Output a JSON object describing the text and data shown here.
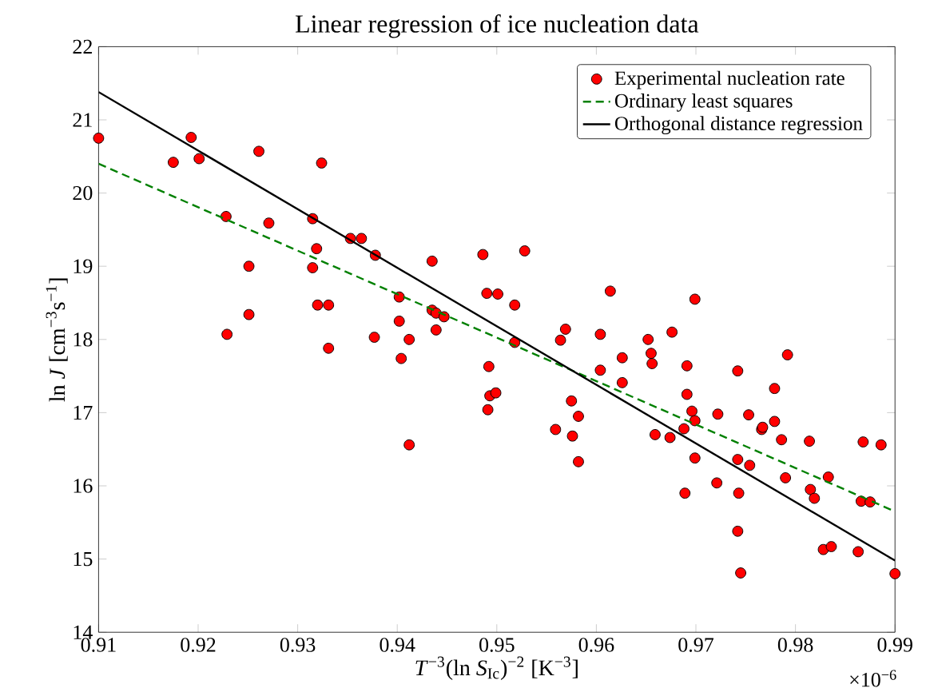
{
  "chart_data": {
    "type": "scatter",
    "title": "Linear regression of ice nucleation data",
    "xlabel": "*T*$^{−3}$(ln *S*$_{Ic}$)$^{−2}$ [K$^{−3}$]",
    "ylabel": "ln *J* [cm$^{−3}$s$^{−1}$]",
    "annotations": [
      "×10$^{−6}$"
    ],
    "xlim": [
      0.91,
      0.99
    ],
    "ylim": [
      14,
      22
    ],
    "xticks": [
      0.91,
      0.92,
      0.93,
      0.94,
      0.95,
      0.96,
      0.97,
      0.98,
      0.99
    ],
    "yticks": [
      14,
      15,
      16,
      17,
      18,
      19,
      20,
      21,
      22
    ],
    "legend": "top right",
    "marker": "circle",
    "series": [
      {
        "name": "Experimental nucleation rate",
        "color": "#ff0000",
        "x": [
          0.91,
          0.9175,
          0.9193,
          0.9201,
          0.9261,
          0.9324,
          0.9228,
          0.9271,
          0.9251,
          0.9251,
          0.9229,
          0.9315,
          0.9319,
          0.9315,
          0.932,
          0.9331,
          0.9331,
          0.9353,
          0.9364,
          0.9378,
          0.9402,
          0.9402,
          0.9377,
          0.9412,
          0.9404,
          0.9435,
          0.9435,
          0.9439,
          0.9447,
          0.9439,
          0.9486,
          0.949,
          0.9492,
          0.9493,
          0.9491,
          0.9412,
          0.9499,
          0.9528,
          0.9501,
          0.9518,
          0.9614,
          0.9699,
          0.9569,
          0.9564,
          0.9518,
          0.9604,
          0.9652,
          0.9676,
          0.9655,
          0.9656,
          0.9626,
          0.9604,
          0.9691,
          0.9742,
          0.9792,
          0.9626,
          0.9779,
          0.9691,
          0.9575,
          0.9559,
          0.9582,
          0.9576,
          0.9582,
          0.9659,
          0.9674,
          0.9688,
          0.9696,
          0.9699,
          0.9699,
          0.9689,
          0.9722,
          0.9721,
          0.9742,
          0.9743,
          0.9742,
          0.9745,
          0.9754,
          0.9753,
          0.9766,
          0.9767,
          0.9779,
          0.9786,
          0.979,
          0.9814,
          0.9815,
          0.9819,
          0.9833,
          0.9828,
          0.9836,
          0.9863,
          0.9868,
          0.9886,
          0.9866,
          0.9875,
          0.99
        ],
        "values": [
          20.75,
          20.42,
          20.76,
          20.47,
          20.57,
          20.41,
          19.68,
          19.59,
          19.0,
          18.34,
          18.07,
          19.65,
          19.24,
          18.98,
          18.47,
          18.47,
          17.88,
          19.38,
          19.38,
          19.15,
          18.58,
          18.25,
          18.03,
          18.0,
          17.74,
          19.07,
          18.4,
          18.36,
          18.31,
          18.13,
          19.16,
          18.63,
          17.63,
          17.23,
          17.04,
          16.56,
          17.27,
          19.21,
          18.62,
          18.47,
          18.66,
          18.55,
          18.14,
          17.99,
          17.96,
          18.07,
          18.0,
          18.1,
          17.81,
          17.67,
          17.75,
          17.58,
          17.64,
          17.57,
          17.79,
          17.41,
          17.33,
          17.25,
          17.16,
          16.77,
          16.95,
          16.68,
          16.33,
          16.7,
          16.66,
          16.78,
          17.02,
          16.89,
          16.38,
          15.9,
          16.98,
          16.04,
          16.36,
          15.9,
          15.38,
          14.81,
          16.28,
          16.97,
          16.77,
          16.8,
          16.88,
          16.63,
          16.11,
          16.61,
          15.95,
          15.83,
          16.12,
          15.13,
          15.17,
          15.1,
          16.6,
          16.56,
          15.79,
          15.78,
          14.8
        ]
      },
      {
        "name": "Ordinary least squares",
        "type": "line",
        "color": "#008000",
        "line_style": "dashed",
        "marker": "none",
        "x": [
          0.91,
          0.99
        ],
        "values": [
          20.4,
          15.65
        ]
      },
      {
        "name": "Orthogonal distance regression",
        "type": "line",
        "color": "#000000",
        "line_style": "solid",
        "marker": "none",
        "x": [
          0.91,
          0.99
        ],
        "values": [
          21.38,
          14.98
        ]
      }
    ]
  }
}
